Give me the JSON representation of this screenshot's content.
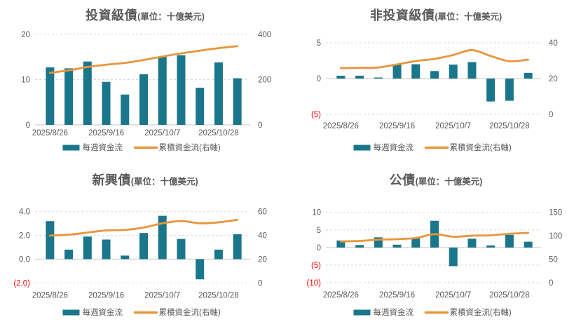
{
  "colors": {
    "bar_teal": "#1A768A",
    "line_orange": "#E8963B",
    "axis_text": "#595959",
    "negative_tick": "#FF0000",
    "gridline": "#D9D9D9",
    "zero_line": "#C6C6C6",
    "title_text": "#595959",
    "background": "#FFFFFF"
  },
  "chart_data": [
    {
      "type": "bar+line",
      "title": "投資級債",
      "unit_label": "(單位：十億美元)",
      "num_weeks": 11,
      "x_tick_labels": [
        {
          "label": "2025/8/26",
          "slot": 0
        },
        {
          "label": "2025/9/16",
          "slot": 3
        },
        {
          "label": "2025/10/7",
          "slot": 6
        },
        {
          "label": "2025/10/28",
          "slot": 9
        }
      ],
      "left_axis": {
        "range": [
          0,
          20
        ],
        "ticks": [
          {
            "label": "0",
            "value": 0
          },
          {
            "label": "10",
            "value": 10
          },
          {
            "label": "20",
            "value": 20
          }
        ]
      },
      "right_axis": {
        "range": [
          0,
          400
        ],
        "ticks": [
          {
            "label": "0",
            "value": 0
          },
          {
            "label": "200",
            "value": 200
          },
          {
            "label": "400",
            "value": 400
          }
        ]
      },
      "series": [
        {
          "name": "每週資金流",
          "type": "bar",
          "axis": "left",
          "values": [
            12.7,
            12.5,
            14.0,
            9.5,
            6.7,
            11.2,
            15.1,
            15.4,
            8.2,
            13.8,
            10.3
          ]
        },
        {
          "name": "累積資金流(右軸)",
          "type": "line",
          "axis": "right",
          "values": [
            230,
            241,
            256,
            266,
            274,
            287,
            302,
            316,
            328,
            339,
            348
          ]
        }
      ]
    },
    {
      "type": "bar+line",
      "title": "非投資級債",
      "unit_label": "(單位：十億美元)",
      "num_weeks": 11,
      "x_tick_labels": [
        {
          "label": "2025/8/26",
          "slot": 0
        },
        {
          "label": "2025/9/16",
          "slot": 3
        },
        {
          "label": "2025/10/7",
          "slot": 6
        },
        {
          "label": "2025/10/28",
          "slot": 9
        }
      ],
      "left_axis": {
        "range": [
          -5,
          5
        ],
        "ticks": [
          {
            "label": "(5)",
            "value": -5
          },
          {
            "label": "0",
            "value": 0
          },
          {
            "label": "5",
            "value": 5
          }
        ]
      },
      "right_axis": {
        "range": [
          0,
          40
        ],
        "ticks": [
          {
            "label": "0",
            "value": 0
          },
          {
            "label": "20",
            "value": 20
          },
          {
            "label": "40",
            "value": 40
          }
        ]
      },
      "series": [
        {
          "name": "每週資金流",
          "type": "bar",
          "axis": "left",
          "values": [
            0.4,
            0.4,
            0.15,
            2.0,
            2.0,
            1.05,
            1.95,
            2.3,
            -3.2,
            -3.1,
            0.8
          ]
        },
        {
          "name": "累積資金流(右軸)",
          "type": "line",
          "axis": "right",
          "values": [
            25.8,
            26.0,
            26.2,
            27.9,
            29.8,
            31.0,
            33.2,
            35.9,
            32.6,
            29.7,
            30.6
          ]
        }
      ]
    },
    {
      "type": "bar+line",
      "title": "新興債",
      "unit_label": "(單位：十億美元)",
      "num_weeks": 11,
      "x_tick_labels": [
        {
          "label": "2025/8/26",
          "slot": 0
        },
        {
          "label": "2025/9/16",
          "slot": 3
        },
        {
          "label": "2025/10/7",
          "slot": 6
        },
        {
          "label": "2025/10/28",
          "slot": 9
        }
      ],
      "left_axis": {
        "range": [
          -2,
          4
        ],
        "ticks": [
          {
            "label": "(2.0)",
            "value": -2
          },
          {
            "label": "0.0",
            "value": 0
          },
          {
            "label": "2.0",
            "value": 2
          },
          {
            "label": "4.0",
            "value": 4
          }
        ]
      },
      "right_axis": {
        "range": [
          0,
          60
        ],
        "ticks": [
          {
            "label": "0",
            "value": 0
          },
          {
            "label": "20",
            "value": 20
          },
          {
            "label": "40",
            "value": 40
          },
          {
            "label": "60",
            "value": 60
          }
        ]
      },
      "series": [
        {
          "name": "每週資金流",
          "type": "bar",
          "axis": "left",
          "values": [
            3.2,
            0.8,
            1.9,
            1.65,
            0.3,
            2.2,
            3.65,
            1.7,
            -1.7,
            0.8,
            2.1
          ]
        },
        {
          "name": "累積資金流(右軸)",
          "type": "line",
          "axis": "right",
          "values": [
            39.8,
            40.6,
            42.4,
            44.2,
            44.6,
            46.6,
            50.2,
            52.1,
            50.2,
            51.0,
            53.2
          ]
        }
      ]
    },
    {
      "type": "bar+line",
      "title": "公債",
      "unit_label": "(單位：十億美元)",
      "num_weeks": 11,
      "x_tick_labels": [
        {
          "label": "2025/8/26",
          "slot": 0
        },
        {
          "label": "2025/9/16",
          "slot": 3
        },
        {
          "label": "2025/10/7",
          "slot": 6
        },
        {
          "label": "2025/10/28",
          "slot": 9
        }
      ],
      "left_axis": {
        "range": [
          -10,
          10
        ],
        "ticks": [
          {
            "label": "(10)",
            "value": -10
          },
          {
            "label": "(5)",
            "value": -5
          },
          {
            "label": "0",
            "value": 0
          },
          {
            "label": "5",
            "value": 5
          },
          {
            "label": "10",
            "value": 10
          }
        ]
      },
      "right_axis": {
        "range": [
          0,
          150
        ],
        "ticks": [
          {
            "label": "0",
            "value": 0
          },
          {
            "label": "50",
            "value": 50
          },
          {
            "label": "100",
            "value": 100
          },
          {
            "label": "150",
            "value": 150
          }
        ]
      },
      "series": [
        {
          "name": "每週資金流",
          "type": "bar",
          "axis": "left",
          "values": [
            2.0,
            0.7,
            2.9,
            0.8,
            2.6,
            7.6,
            -5.3,
            2.5,
            0.6,
            3.6,
            1.65
          ]
        },
        {
          "name": "累積資金流(右軸)",
          "type": "line",
          "axis": "right",
          "values": [
            88,
            89,
            91.8,
            92.8,
            95.3,
            103.5,
            98,
            100.3,
            101,
            104.3,
            106.3
          ]
        }
      ]
    }
  ]
}
